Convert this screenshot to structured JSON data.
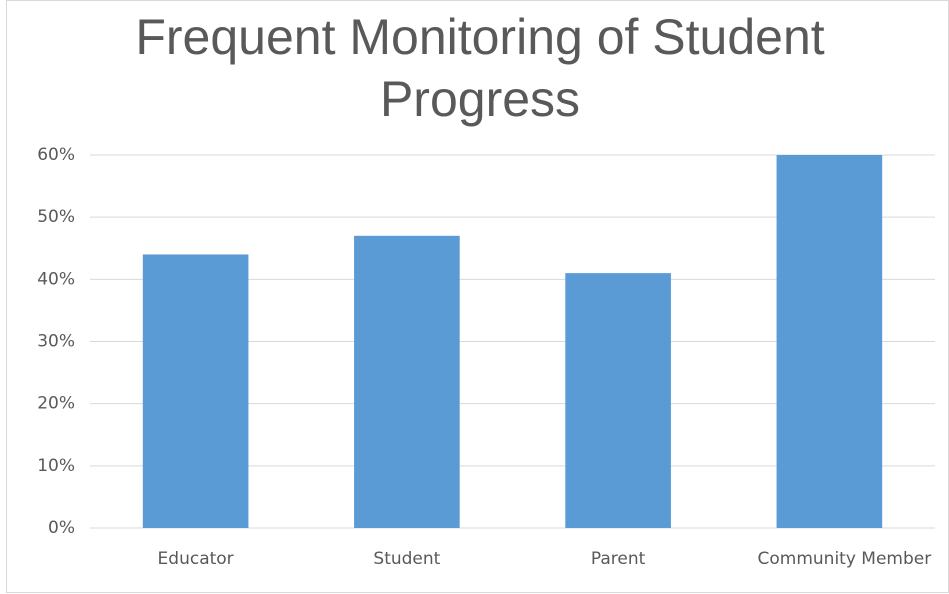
{
  "chart_data": {
    "type": "bar",
    "title": "Frequent Monitoring of Student Progress",
    "categories": [
      "Educator",
      "Student",
      "Parent",
      "Community Member"
    ],
    "values": [
      44,
      47,
      41,
      60
    ],
    "color": "#5b9bd5",
    "ylim": [
      0,
      60
    ],
    "yticks": [
      {
        "value": 0,
        "label": "0%"
      },
      {
        "value": 10,
        "label": "10%"
      },
      {
        "value": 20,
        "label": "20%"
      },
      {
        "value": 30,
        "label": "30%"
      },
      {
        "value": 40,
        "label": "40%"
      },
      {
        "value": 50,
        "label": "50%"
      },
      {
        "value": 60,
        "label": "60%"
      }
    ],
    "grid": true
  }
}
